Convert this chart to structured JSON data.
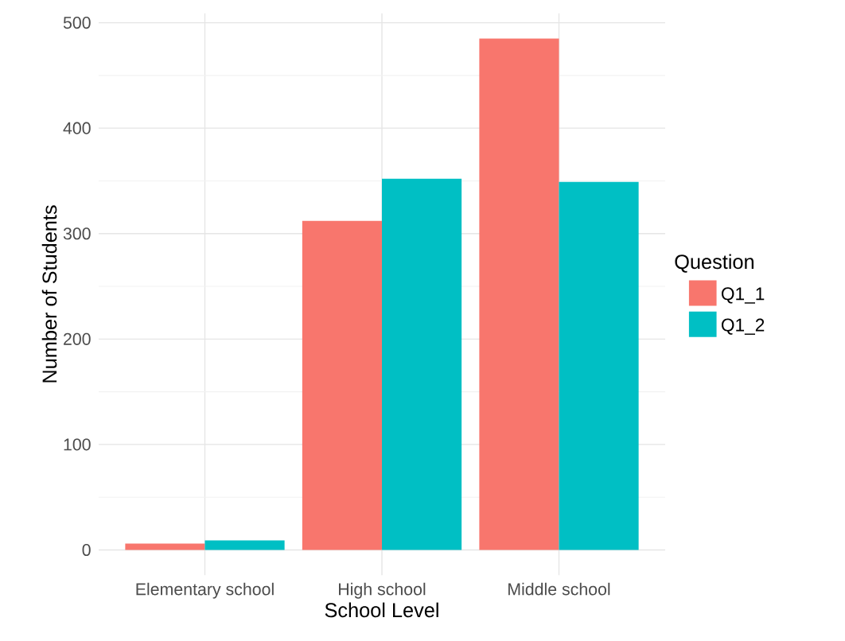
{
  "chart_data": {
    "type": "bar",
    "xlabel": "School Level",
    "ylabel": "Number of Students",
    "legend_title": "Question",
    "categories": [
      "Elementary school",
      "High school",
      "Middle school"
    ],
    "series": [
      {
        "name": "Q1_1",
        "color": "#f8766d",
        "values": [
          6,
          312,
          485
        ]
      },
      {
        "name": "Q1_2",
        "color": "#00bfc4",
        "values": [
          9,
          352,
          349
        ]
      }
    ],
    "ylim": [
      -24,
      509
    ],
    "yticks": [
      0,
      100,
      200,
      300,
      400,
      500
    ],
    "grid": true,
    "legend": "right"
  }
}
